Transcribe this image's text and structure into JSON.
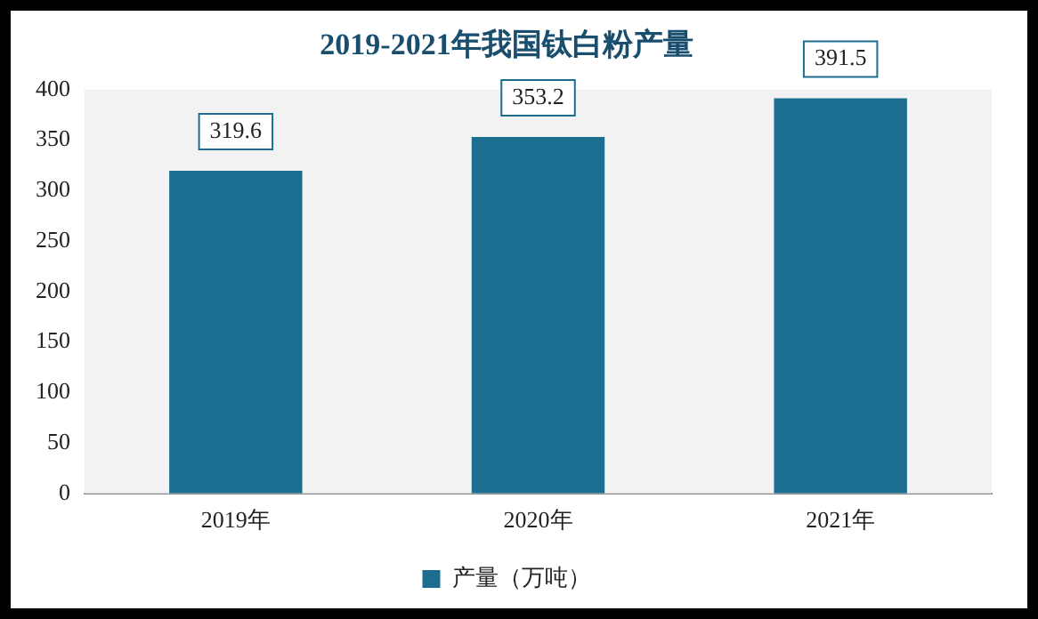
{
  "chart_data": {
    "type": "bar",
    "title": "2019-2021年我国钛白粉产量",
    "categories": [
      "2019年",
      "2020年",
      "2021年"
    ],
    "series": [
      {
        "name": "产量（万吨）",
        "color": "#1c6e91",
        "values": [
          319.6,
          353.2,
          391.5
        ]
      }
    ],
    "ylim": [
      0,
      400
    ],
    "yticks": [
      0,
      50,
      100,
      150,
      200,
      250,
      300,
      350,
      400
    ],
    "grid": false,
    "legend": "bottom",
    "data_labels": true
  }
}
